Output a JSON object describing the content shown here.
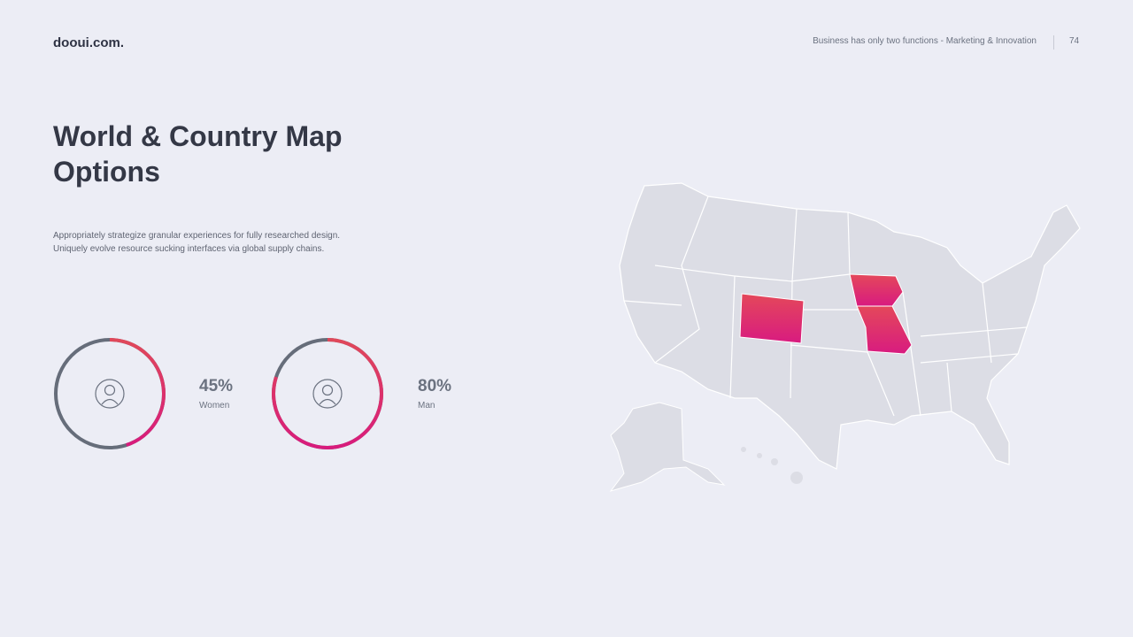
{
  "header": {
    "brand": "dooui.com.",
    "tagline": "Business has only two functions - Marketing & Innovation",
    "page_number": "74"
  },
  "title": "World & Country Map Options",
  "body": [
    "Appropriately strategize granular experiences for fully researched design.",
    "Uniquely evolve resource sucking interfaces via global supply chains."
  ],
  "stats": [
    {
      "value": 45,
      "value_label": "45%",
      "label": "Women"
    },
    {
      "value": 80,
      "value_label": "80%",
      "label": "Man"
    }
  ]
}
